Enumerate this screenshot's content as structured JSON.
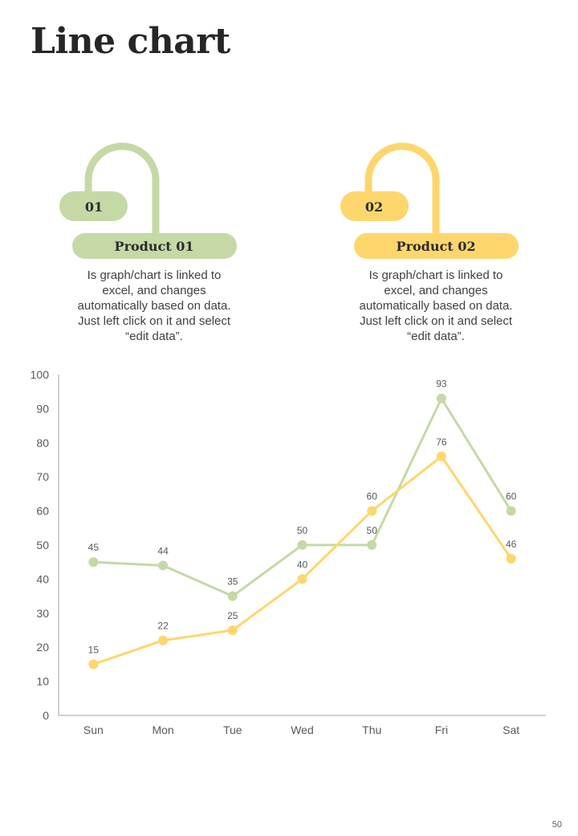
{
  "page": {
    "title": "Line chart",
    "page_number": "50"
  },
  "colors": {
    "product1": "#c5d9a6",
    "product2": "#fdd66e",
    "axis": "#a6a6a6"
  },
  "products": [
    {
      "number": "01",
      "name": "Product 01",
      "description": "Is graph/chart is linked to excel, and changes automatically based on data. Just left click on it and select “edit data”."
    },
    {
      "number": "02",
      "name": "Product 02",
      "description": "Is graph/chart is linked to excel, and changes automatically based on data. Just left click on it and select “edit data”."
    }
  ],
  "chart_data": {
    "type": "line",
    "title": "",
    "xlabel": "",
    "ylabel": "",
    "categories": [
      "Sun",
      "Mon",
      "Tue",
      "Wed",
      "Thu",
      "Fri",
      "Sat"
    ],
    "ylim": [
      0,
      100
    ],
    "yticks": [
      0,
      10,
      20,
      30,
      40,
      50,
      60,
      70,
      80,
      90,
      100
    ],
    "grid": false,
    "legend": "none",
    "series": [
      {
        "name": "Product 01",
        "color": "#c5d9a6",
        "values": [
          45,
          44,
          35,
          50,
          50,
          93,
          60
        ]
      },
      {
        "name": "Product 02",
        "color": "#fdd66e",
        "values": [
          15,
          22,
          25,
          40,
          60,
          76,
          46
        ]
      }
    ]
  }
}
